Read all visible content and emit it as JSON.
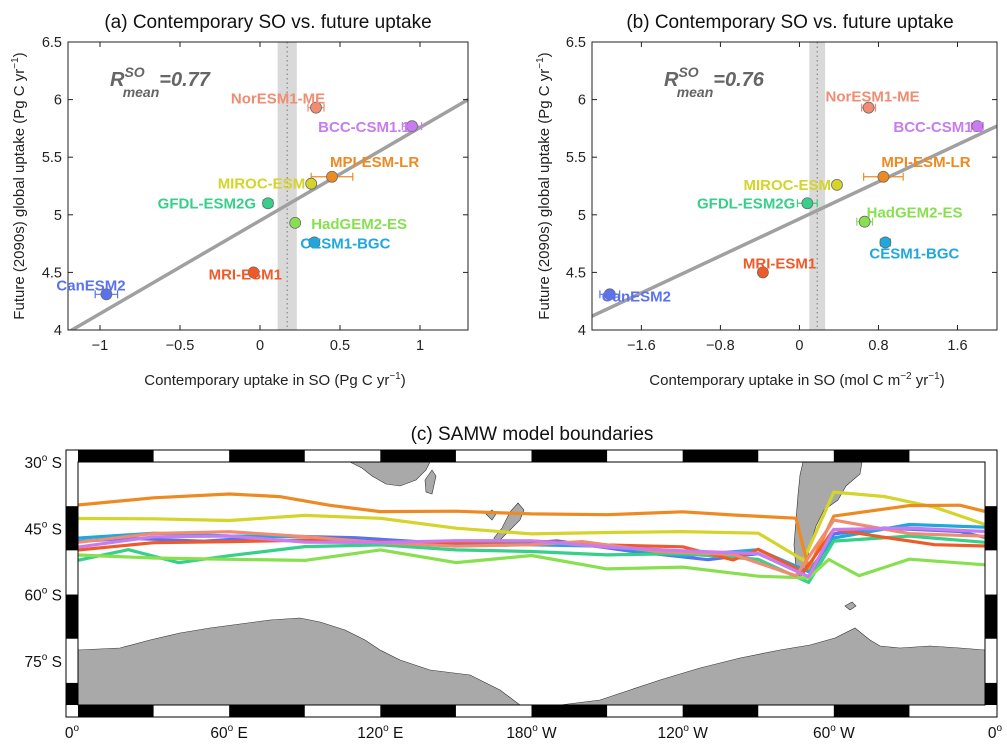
{
  "chart_data": [
    {
      "type": "scatter",
      "title": "(a) Contemporary SO vs. future uptake",
      "xlabel": "Contemporary uptake in SO (Pg C yr",
      "xlabel_sup": "−1",
      "xlabel_end": ")",
      "ylabel": "Future (2090s) global uptake (Pg C yr",
      "ylabel_sup": "−1",
      "ylabel_end": ")",
      "xlim": [
        -1.2,
        1.3
      ],
      "ylim": [
        4.0,
        6.5
      ],
      "xticks": [
        -1,
        -0.5,
        0,
        0.5,
        1
      ],
      "xtick_labels": [
        "−1",
        "−0.5",
        "0",
        "0.5",
        "1"
      ],
      "yticks": [
        4,
        4.5,
        5,
        5.5,
        6,
        6.5
      ],
      "ytick_labels": [
        "4",
        "4.5",
        "5",
        "5.5",
        "6",
        "6.5"
      ],
      "annotation": {
        "R": "R",
        "sup": "SO",
        "sub": "mean",
        "value": "=0.77"
      },
      "regression": {
        "x": [
          -1.2,
          1.3
        ],
        "y": [
          3.98,
          6.0
        ]
      },
      "band": {
        "x": [
          0.11,
          0.23
        ],
        "center": 0.17
      },
      "points": [
        {
          "name": "NorESM1-ME",
          "x": 0.35,
          "y": 5.93,
          "xerr": 0.05,
          "color": "#f08c72"
        },
        {
          "name": "BCC-CSM1.1",
          "x": 0.95,
          "y": 5.77,
          "xerr": 0.06,
          "color": "#c87cf0"
        },
        {
          "name": "MPI-ESM-LR",
          "x": 0.45,
          "y": 5.33,
          "xerr": 0.13,
          "color": "#ee8a22"
        },
        {
          "name": "MIROC-ESM",
          "x": 0.32,
          "y": 5.27,
          "xerr": 0.0,
          "color": "#d4d42a"
        },
        {
          "name": "GFDL-ESM2G",
          "x": 0.05,
          "y": 5.1,
          "xerr": 0.03,
          "color": "#36d08a"
        },
        {
          "name": "HadGEM2-ES",
          "x": 0.22,
          "y": 4.93,
          "xerr": 0.0,
          "color": "#88e050"
        },
        {
          "name": "CESM1-BGC",
          "x": 0.34,
          "y": 4.76,
          "xerr": 0.03,
          "color": "#1ea8de"
        },
        {
          "name": "MRI-ESM1",
          "x": -0.04,
          "y": 4.5,
          "xerr": 0.0,
          "color": "#f05a28"
        },
        {
          "name": "CanESM2",
          "x": -0.96,
          "y": 4.31,
          "xerr": 0.07,
          "color": "#5a72ee"
        }
      ]
    },
    {
      "type": "scatter",
      "title": "(b) Contemporary SO vs. future uptake",
      "xlabel": "Contemporary uptake in SO (mol C m",
      "xlabel_sup": "−2",
      "xlabel_mid": " yr",
      "xlabel_sup2": "−1",
      "xlabel_end": ")",
      "ylabel": "Future (2090s) global uptake (Pg C yr",
      "ylabel_sup": "−1",
      "ylabel_end": ")",
      "xlim": [
        -2.1,
        2.0
      ],
      "ylim": [
        4.0,
        6.5
      ],
      "xticks": [
        -1.6,
        -0.8,
        0,
        0.8,
        1.6
      ],
      "xtick_labels": [
        "−1.6",
        "−0.8",
        "0",
        "0.8",
        "1.6"
      ],
      "yticks": [
        4,
        4.5,
        5,
        5.5,
        6,
        6.5
      ],
      "ytick_labels": [
        "4",
        "4.5",
        "5",
        "5.5",
        "6",
        "6.5"
      ],
      "annotation": {
        "R": "R",
        "sup": "SO",
        "sub": "mean",
        "value": "=0.76"
      },
      "regression": {
        "x": [
          -2.1,
          2.0
        ],
        "y": [
          4.12,
          5.77
        ]
      },
      "band": {
        "x": [
          0.1,
          0.26
        ],
        "center": 0.18
      },
      "points": [
        {
          "name": "NorESM1-ME",
          "x": 0.7,
          "y": 5.93,
          "xerr": 0.07,
          "color": "#f08c72"
        },
        {
          "name": "BCC-CSM1.1",
          "x": 1.8,
          "y": 5.77,
          "xerr": 0.06,
          "color": "#c87cf0"
        },
        {
          "name": "MPI-ESM-LR",
          "x": 0.85,
          "y": 5.33,
          "xerr": 0.2,
          "color": "#ee8a22"
        },
        {
          "name": "MIROC-ESM",
          "x": 0.38,
          "y": 5.26,
          "xerr": 0.0,
          "color": "#d4d42a"
        },
        {
          "name": "GFDL-ESM2G",
          "x": 0.08,
          "y": 5.1,
          "xerr": 0.1,
          "color": "#36d08a"
        },
        {
          "name": "HadGEM2-ES",
          "x": 0.66,
          "y": 4.94,
          "xerr": 0.08,
          "color": "#88e050"
        },
        {
          "name": "CESM1-BGC",
          "x": 0.87,
          "y": 4.76,
          "xerr": 0.05,
          "color": "#1ea8de"
        },
        {
          "name": "MRI-ESM1",
          "x": -0.37,
          "y": 4.5,
          "xerr": 0.0,
          "color": "#f05a28"
        },
        {
          "name": "CanESM2",
          "x": -1.92,
          "y": 4.31,
          "xerr": 0.1,
          "color": "#5a72ee"
        }
      ]
    },
    {
      "type": "map",
      "title": "(c) SAMW model boundaries",
      "lon_range": [
        0,
        360
      ],
      "lat_range": [
        -85,
        -30
      ],
      "xtick_lons": [
        0,
        60,
        120,
        180,
        240,
        300,
        360
      ],
      "xtick_labels": [
        "0",
        "60",
        "120",
        "180",
        "120",
        "60",
        "0"
      ],
      "xtick_hemi": [
        "",
        "E",
        "E",
        "W",
        "W",
        "W",
        ""
      ],
      "deg_symbol": "o",
      "ytick_lats": [
        -30,
        -45,
        -60,
        -75
      ],
      "ytick_labels": [
        "30",
        "45",
        "60",
        "75"
      ],
      "ytick_hemi": "S",
      "land_color": "#a9a9a9",
      "model_lines": [
        {
          "color": "#5a72ee",
          "lat": [
            [
              0,
              48
            ],
            [
              20,
              47
            ],
            [
              50,
              48
            ],
            [
              80,
              47
            ],
            [
              110,
              47
            ],
            [
              140,
              48
            ],
            [
              170,
              49
            ],
            [
              190,
              48
            ],
            [
              220,
              50
            ],
            [
              250,
              52
            ],
            [
              270,
              51
            ],
            [
              290,
              56
            ],
            [
              300,
              46
            ],
            [
              320,
              45
            ],
            [
              350,
              46
            ],
            [
              360,
              47
            ]
          ]
        },
        {
          "color": "#1ea8de",
          "lat": [
            [
              0,
              47
            ],
            [
              30,
              46
            ],
            [
              60,
              47
            ],
            [
              90,
              47
            ],
            [
              120,
              48
            ],
            [
              150,
              48
            ],
            [
              180,
              49
            ],
            [
              210,
              49
            ],
            [
              240,
              51
            ],
            [
              270,
              50
            ],
            [
              290,
              55
            ],
            [
              300,
              47
            ],
            [
              330,
              44
            ],
            [
              360,
              45
            ]
          ]
        },
        {
          "color": "#36d08a",
          "lat": [
            [
              0,
              52
            ],
            [
              20,
              50
            ],
            [
              40,
              53
            ],
            [
              60,
              51
            ],
            [
              90,
              49
            ],
            [
              120,
              49
            ],
            [
              150,
              50
            ],
            [
              180,
              50
            ],
            [
              210,
              51
            ],
            [
              240,
              51
            ],
            [
              270,
              52
            ],
            [
              290,
              57
            ],
            [
              300,
              48
            ],
            [
              330,
              47
            ],
            [
              360,
              48
            ]
          ]
        },
        {
          "color": "#88e050",
          "lat": [
            [
              0,
              51
            ],
            [
              30,
              52
            ],
            [
              60,
              52
            ],
            [
              90,
              52
            ],
            [
              120,
              50
            ],
            [
              150,
              53
            ],
            [
              180,
              51
            ],
            [
              210,
              54
            ],
            [
              240,
              54
            ],
            [
              270,
              56
            ],
            [
              290,
              56
            ],
            [
              298,
              52
            ],
            [
              310,
              56
            ],
            [
              330,
              52
            ],
            [
              360,
              53
            ]
          ]
        },
        {
          "color": "#d4d42a",
          "lat": [
            [
              0,
              43
            ],
            [
              30,
              43
            ],
            [
              60,
              43
            ],
            [
              90,
              42
            ],
            [
              120,
              43
            ],
            [
              150,
              45
            ],
            [
              180,
              46
            ],
            [
              210,
              46
            ],
            [
              240,
              46
            ],
            [
              270,
              46
            ],
            [
              288,
              52
            ],
            [
              300,
              37
            ],
            [
              320,
              38
            ],
            [
              340,
              40
            ],
            [
              360,
              44
            ]
          ]
        },
        {
          "color": "#ee8a22",
          "lat": [
            [
              0,
              40
            ],
            [
              30,
              38
            ],
            [
              60,
              37
            ],
            [
              80,
              38
            ],
            [
              100,
              40
            ],
            [
              120,
              41
            ],
            [
              150,
              41
            ],
            [
              180,
              42
            ],
            [
              210,
              42
            ],
            [
              240,
              41
            ],
            [
              260,
              42
            ],
            [
              285,
              43
            ],
            [
              290,
              54
            ],
            [
              300,
              42
            ],
            [
              330,
              40
            ],
            [
              350,
              40
            ],
            [
              360,
              41
            ]
          ]
        },
        {
          "color": "#f05a28",
          "lat": [
            [
              0,
              50
            ],
            [
              30,
              48
            ],
            [
              60,
              48
            ],
            [
              90,
              48
            ],
            [
              120,
              48
            ],
            [
              150,
              48
            ],
            [
              180,
              48
            ],
            [
              210,
              49
            ],
            [
              240,
              49
            ],
            [
              260,
              52
            ],
            [
              270,
              50
            ],
            [
              288,
              55
            ],
            [
              300,
              45
            ],
            [
              320,
              47
            ],
            [
              340,
              49
            ],
            [
              360,
              49
            ]
          ]
        },
        {
          "color": "#f08c72",
          "lat": [
            [
              0,
              48
            ],
            [
              30,
              46
            ],
            [
              60,
              46
            ],
            [
              90,
              47
            ],
            [
              120,
              48
            ],
            [
              150,
              49
            ],
            [
              180,
              49
            ],
            [
              200,
              48
            ],
            [
              230,
              50
            ],
            [
              260,
              51
            ],
            [
              285,
              56
            ],
            [
              300,
              43
            ],
            [
              330,
              46
            ],
            [
              360,
              47
            ]
          ]
        },
        {
          "color": "#c87cf0",
          "lat": [
            [
              0,
              49
            ],
            [
              30,
              47
            ],
            [
              60,
              47
            ],
            [
              90,
              48
            ],
            [
              120,
              48
            ],
            [
              150,
              48
            ],
            [
              180,
              48
            ],
            [
              210,
              49
            ],
            [
              240,
              50
            ],
            [
              270,
              51
            ],
            [
              290,
              56
            ],
            [
              300,
              45
            ],
            [
              330,
              45
            ],
            [
              360,
              46
            ]
          ]
        }
      ]
    }
  ]
}
